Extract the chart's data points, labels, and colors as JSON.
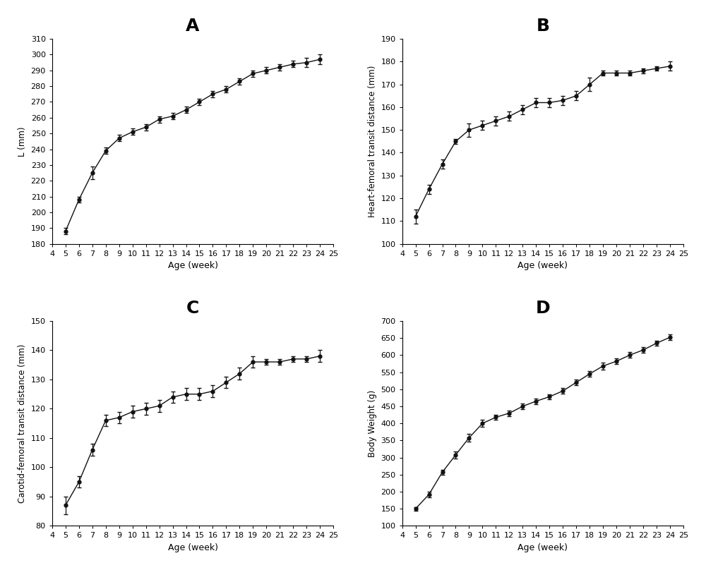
{
  "ages": [
    5,
    6,
    7,
    8,
    9,
    10,
    11,
    12,
    13,
    14,
    15,
    16,
    17,
    18,
    19,
    20,
    21,
    22,
    23,
    24
  ],
  "A_ylabel": "L (mm)",
  "A_ylim": [
    180,
    310
  ],
  "A_yticks": [
    180,
    190,
    200,
    210,
    220,
    230,
    240,
    250,
    260,
    270,
    280,
    290,
    300,
    310
  ],
  "A_y": [
    188,
    208,
    225,
    239,
    247,
    251,
    254,
    259,
    261,
    265,
    270,
    275,
    278,
    283,
    288,
    290,
    292,
    294,
    295,
    297
  ],
  "A_yerr": [
    2,
    2,
    4,
    2,
    2,
    2,
    2,
    2,
    2,
    2,
    2,
    2,
    2,
    2,
    2,
    2,
    2,
    2,
    3,
    3
  ],
  "B_ylabel": "Heart-femoral transit distance (mm)",
  "B_ylim": [
    100,
    190
  ],
  "B_yticks": [
    100,
    110,
    120,
    130,
    140,
    150,
    160,
    170,
    180,
    190
  ],
  "B_y": [
    112,
    124,
    135,
    145,
    150,
    152,
    154,
    156,
    159,
    162,
    162,
    163,
    165,
    170,
    175,
    175,
    175,
    176,
    177,
    178
  ],
  "B_yerr": [
    3,
    2,
    2,
    1,
    3,
    2,
    2,
    2,
    2,
    2,
    2,
    2,
    2,
    3,
    1,
    1,
    1,
    1,
    1,
    2
  ],
  "C_ylabel": "Carotid-femoral transit distance (mm)",
  "C_ylim": [
    80,
    150
  ],
  "C_yticks": [
    80,
    90,
    100,
    110,
    120,
    130,
    140,
    150
  ],
  "C_y": [
    87,
    95,
    106,
    116,
    117,
    119,
    120,
    121,
    124,
    125,
    125,
    126,
    129,
    132,
    136,
    136,
    136,
    137,
    137,
    138
  ],
  "C_yerr": [
    3,
    2,
    2,
    2,
    2,
    2,
    2,
    2,
    2,
    2,
    2,
    2,
    2,
    2,
    2,
    1,
    1,
    1,
    1,
    2
  ],
  "D_ylabel": "Body Weight (g)",
  "D_ylim": [
    100,
    700
  ],
  "D_yticks": [
    100,
    150,
    200,
    250,
    300,
    350,
    400,
    450,
    500,
    550,
    600,
    650,
    700
  ],
  "D_y": [
    150,
    192,
    257,
    308,
    358,
    400,
    418,
    430,
    450,
    465,
    478,
    495,
    520,
    545,
    568,
    582,
    600,
    615,
    635,
    652
  ],
  "D_yerr": [
    5,
    8,
    8,
    10,
    12,
    10,
    8,
    8,
    8,
    8,
    8,
    8,
    8,
    8,
    10,
    8,
    8,
    8,
    8,
    8
  ],
  "xlabel": "Age (week)",
  "xlim": [
    4,
    25
  ],
  "xticks": [
    4,
    5,
    6,
    7,
    8,
    9,
    10,
    11,
    12,
    13,
    14,
    15,
    16,
    17,
    18,
    19,
    20,
    21,
    22,
    23,
    24,
    25
  ],
  "panel_labels": [
    "A",
    "B",
    "C",
    "D"
  ],
  "line_color": "#111111",
  "marker": "o",
  "markersize": 3.5,
  "linewidth": 1.0,
  "capsize": 2.5,
  "elinewidth": 0.9,
  "background_color": "#ffffff",
  "tick_labelsize": 8,
  "xlabel_fontsize": 9,
  "ylabel_fontsize": 8.5,
  "panel_label_fontsize": 18
}
